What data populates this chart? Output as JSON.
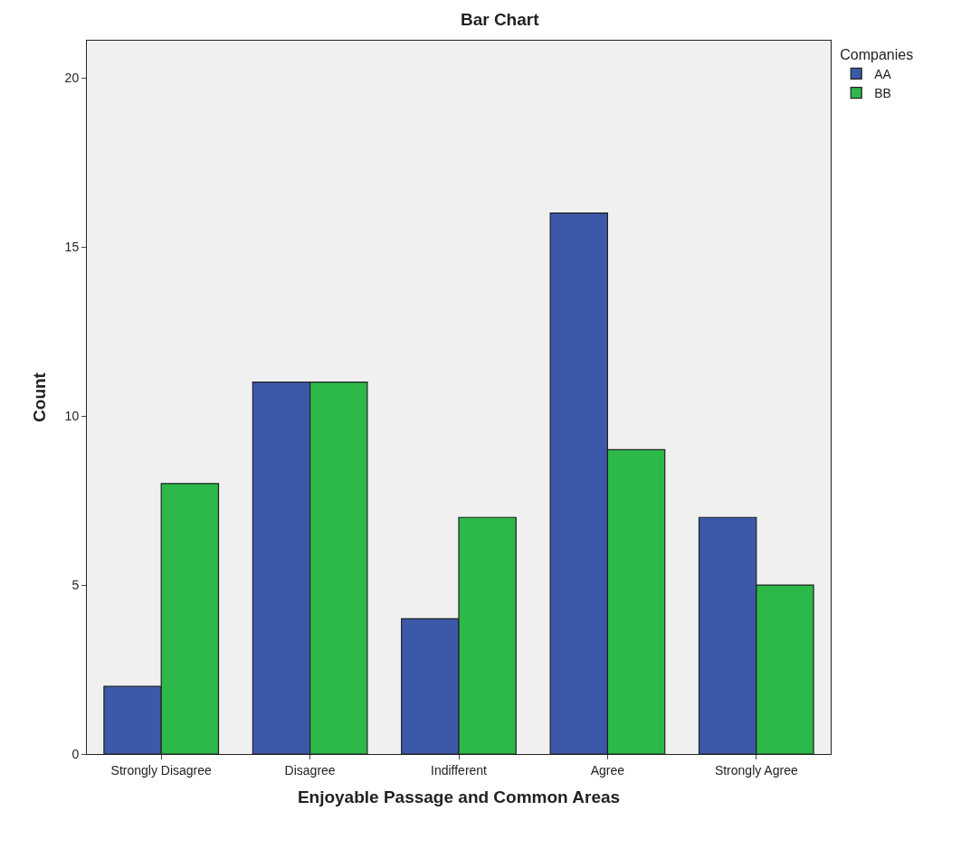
{
  "chart_data": {
    "type": "bar",
    "title": "Bar Chart",
    "xlabel": "Enjoyable Passage and Common Areas",
    "ylabel": "Count",
    "legend_title": "Companies",
    "categories": [
      "Strongly Disagree",
      "Disagree",
      "Indifferent",
      "Agree",
      "Strongly Agree"
    ],
    "series": [
      {
        "name": "AA",
        "color": "#3c58a8",
        "values": [
          2,
          11,
          4,
          16,
          7
        ]
      },
      {
        "name": "BB",
        "color": "#2db84a",
        "values": [
          8,
          11,
          7,
          9,
          5
        ]
      }
    ],
    "ylim": [
      0,
      21.1
    ],
    "yticks": [
      0,
      5,
      10,
      15,
      20
    ],
    "grid": false,
    "legend": "top right"
  }
}
